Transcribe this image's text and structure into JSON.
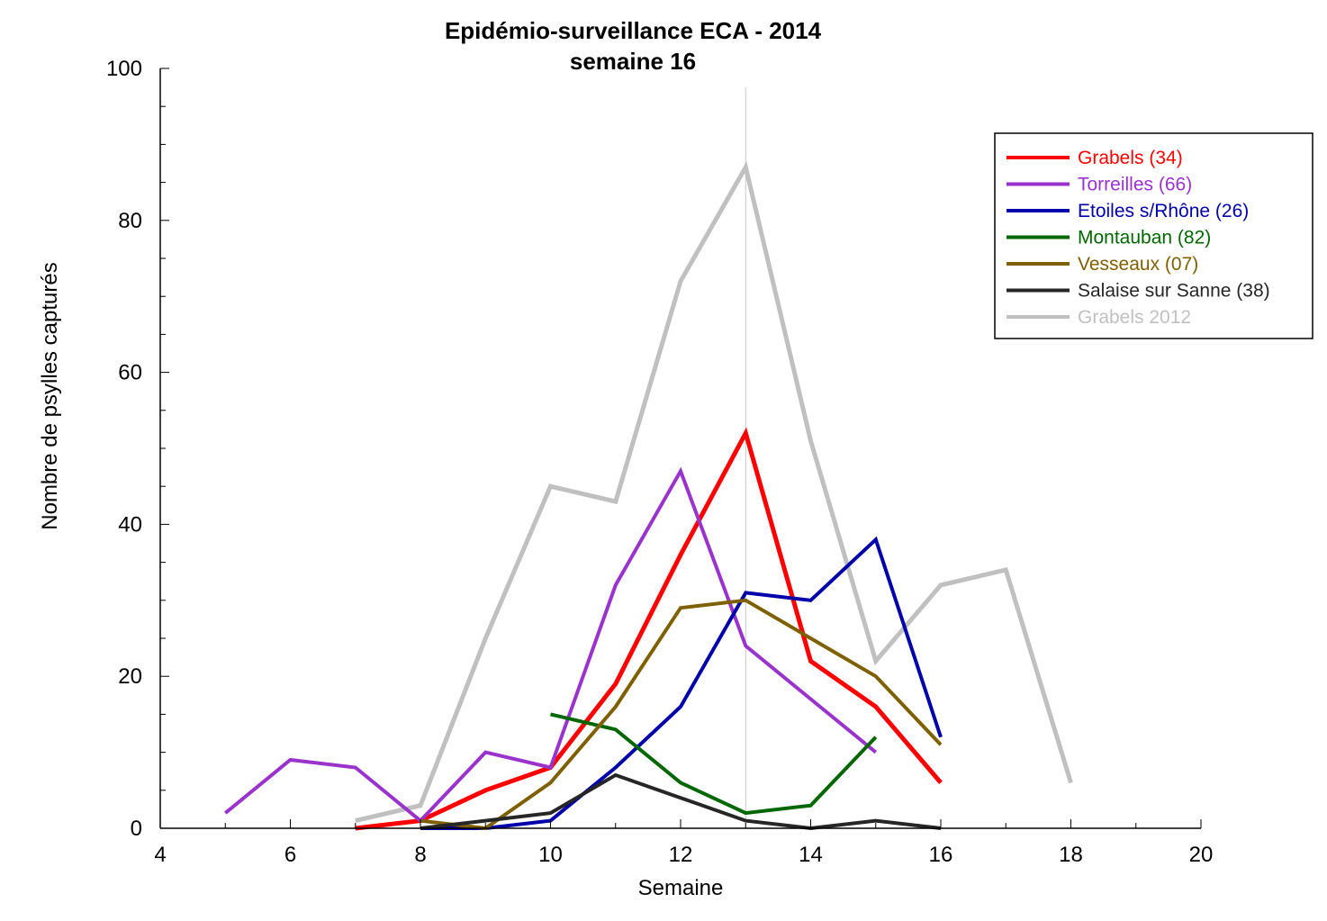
{
  "chart_data": {
    "type": "line",
    "title": "Epidémio-surveillance ECA - 2014",
    "subtitle": "semaine 16",
    "xlabel": "Semaine",
    "ylabel": "Nombre de psylles capturés",
    "xlim": [
      4,
      20
    ],
    "ylim": [
      0,
      100
    ],
    "xticks": [
      4,
      6,
      8,
      10,
      12,
      14,
      16,
      18,
      20
    ],
    "yticks": [
      0,
      20,
      40,
      60,
      80,
      100
    ],
    "grid": false,
    "legend_position": "top-right",
    "reference_line_x": 13,
    "series": [
      {
        "name": "Grabels (34)",
        "color": "#ff0000",
        "points": [
          [
            7,
            0
          ],
          [
            8,
            1
          ],
          [
            9,
            5
          ],
          [
            10,
            8
          ],
          [
            11,
            19
          ],
          [
            12,
            36
          ],
          [
            13,
            52
          ],
          [
            14,
            22
          ],
          [
            15,
            16
          ],
          [
            16,
            6
          ]
        ]
      },
      {
        "name": "Torreilles (66)",
        "color": "#9933cc",
        "points": [
          [
            5,
            2
          ],
          [
            6,
            9
          ],
          [
            7,
            8
          ],
          [
            8,
            1
          ],
          [
            9,
            10
          ],
          [
            10,
            8
          ],
          [
            11,
            32
          ],
          [
            12,
            47
          ],
          [
            13,
            24
          ],
          [
            14,
            17
          ],
          [
            15,
            10
          ]
        ]
      },
      {
        "name": "Etoiles s/Rhône (26)",
        "color": "#0000aa",
        "points": [
          [
            8,
            0
          ],
          [
            9,
            0
          ],
          [
            10,
            1
          ],
          [
            11,
            8
          ],
          [
            12,
            16
          ],
          [
            13,
            31
          ],
          [
            14,
            30
          ],
          [
            15,
            38
          ],
          [
            16,
            12
          ]
        ]
      },
      {
        "name": "Montauban (82)",
        "color": "#006600",
        "points": [
          [
            10,
            15
          ],
          [
            11,
            13
          ],
          [
            12,
            6
          ],
          [
            13,
            2
          ],
          [
            14,
            3
          ],
          [
            15,
            12
          ]
        ]
      },
      {
        "name": "Vesseaux (07)",
        "color": "#7f6000",
        "points": [
          [
            8,
            1
          ],
          [
            9,
            0
          ],
          [
            10,
            6
          ],
          [
            11,
            16
          ],
          [
            12,
            29
          ],
          [
            13,
            30
          ],
          [
            14,
            25
          ],
          [
            15,
            20
          ],
          [
            16,
            11
          ]
        ]
      },
      {
        "name": "Salaise sur Sanne (38)",
        "color": "#262626",
        "points": [
          [
            8,
            0
          ],
          [
            9,
            1
          ],
          [
            10,
            2
          ],
          [
            11,
            7
          ],
          [
            12,
            4
          ],
          [
            13,
            1
          ],
          [
            14,
            0
          ],
          [
            15,
            1
          ],
          [
            16,
            0
          ]
        ]
      },
      {
        "name": "Grabels 2012",
        "color": "#c0c0c0",
        "points": [
          [
            7,
            1
          ],
          [
            8,
            3
          ],
          [
            9,
            25
          ],
          [
            10,
            45
          ],
          [
            11,
            43
          ],
          [
            12,
            72
          ],
          [
            13,
            87
          ],
          [
            14,
            51
          ],
          [
            15,
            22
          ],
          [
            16,
            32
          ],
          [
            17,
            34
          ],
          [
            18,
            6
          ]
        ]
      }
    ]
  }
}
